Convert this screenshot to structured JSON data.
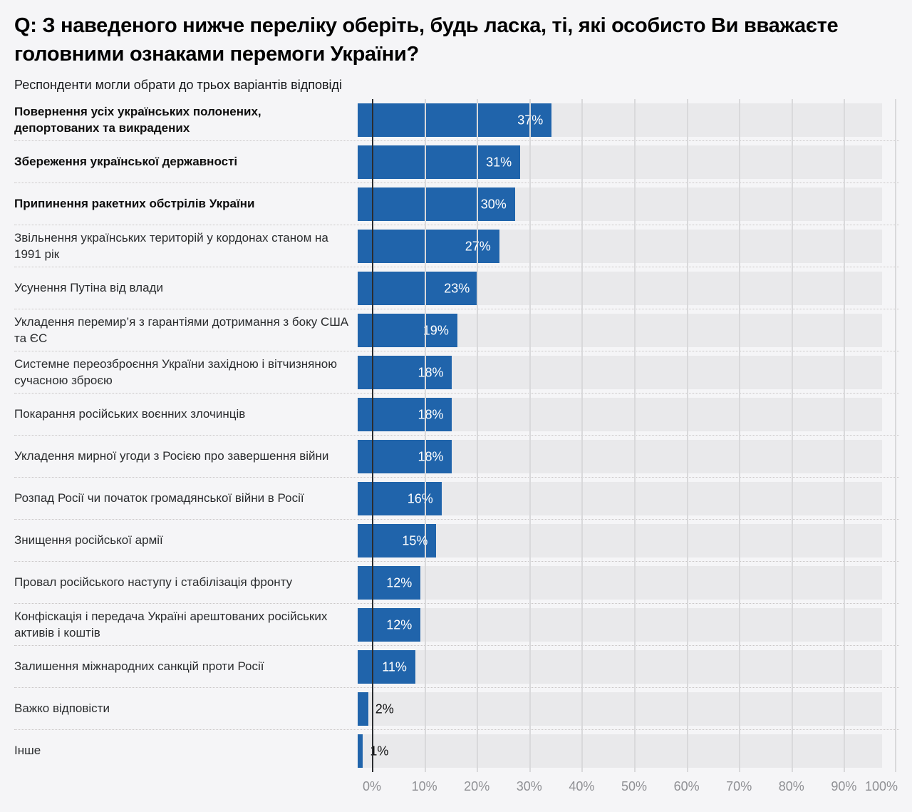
{
  "header": {
    "title": "Q: З наведеного нижче переліку оберіть, будь ласка, ті, які особисто Ви вважаєте головними ознаками перемоги України?",
    "subtitle": "Респонденти могли обрати до трьох варіантів відповіді"
  },
  "chart_data": {
    "type": "bar",
    "orientation": "horizontal",
    "value_unit": "%",
    "xlim": [
      0,
      100
    ],
    "x_ticks": [
      "0%",
      "10%",
      "20%",
      "30%",
      "40%",
      "50%",
      "60%",
      "70%",
      "80%",
      "90%",
      "100%"
    ],
    "grid": true,
    "legend": "none",
    "colors": {
      "bar": "#2064ab",
      "track": "#e9e9eb",
      "background": "#f5f5f7",
      "grid_line": "#d9d9db",
      "axis_line": "#2b2d30",
      "value_inside": "#ffffff",
      "value_outside": "#101112",
      "tick_text": "#8f9094"
    },
    "categories": [
      {
        "label": "Повернення усіх українських полонених, депортованих та викрадених",
        "value": 37,
        "bold": true
      },
      {
        "label": "Збереження української державності",
        "value": 31,
        "bold": true
      },
      {
        "label": "Припинення ракетних обстрілів України",
        "value": 30,
        "bold": true
      },
      {
        "label": "Звільнення українських територій у кордонах станом на 1991 рік",
        "value": 27,
        "bold": false
      },
      {
        "label": "Усунення Путіна від влади",
        "value": 23,
        "bold": false
      },
      {
        "label": "Укладення перемир’я з гарантіями дотримання з боку США та ЄС",
        "value": 19,
        "bold": false
      },
      {
        "label": "Системне переозброєння України західною і вітчизняною сучасною зброєю",
        "value": 18,
        "bold": false
      },
      {
        "label": "Покарання російських воєнних злочинців",
        "value": 18,
        "bold": false
      },
      {
        "label": "Укладення мирної угоди з Росією про завершення війни",
        "value": 18,
        "bold": false
      },
      {
        "label": "Розпад Росії чи початок громадянської війни в Росії",
        "value": 16,
        "bold": false
      },
      {
        "label": "Знищення російської армії",
        "value": 15,
        "bold": false
      },
      {
        "label": "Провал російського наступу і стабілізація фронту",
        "value": 12,
        "bold": false
      },
      {
        "label": "Конфіскація і передача Україні арештованих російських активів і коштів",
        "value": 12,
        "bold": false
      },
      {
        "label": "Залишення міжнародних санкцій проти Росії",
        "value": 11,
        "bold": false
      },
      {
        "label": "Важко відповісти",
        "value": 2,
        "bold": false
      },
      {
        "label": "Інше",
        "value": 1,
        "bold": false
      }
    ]
  }
}
